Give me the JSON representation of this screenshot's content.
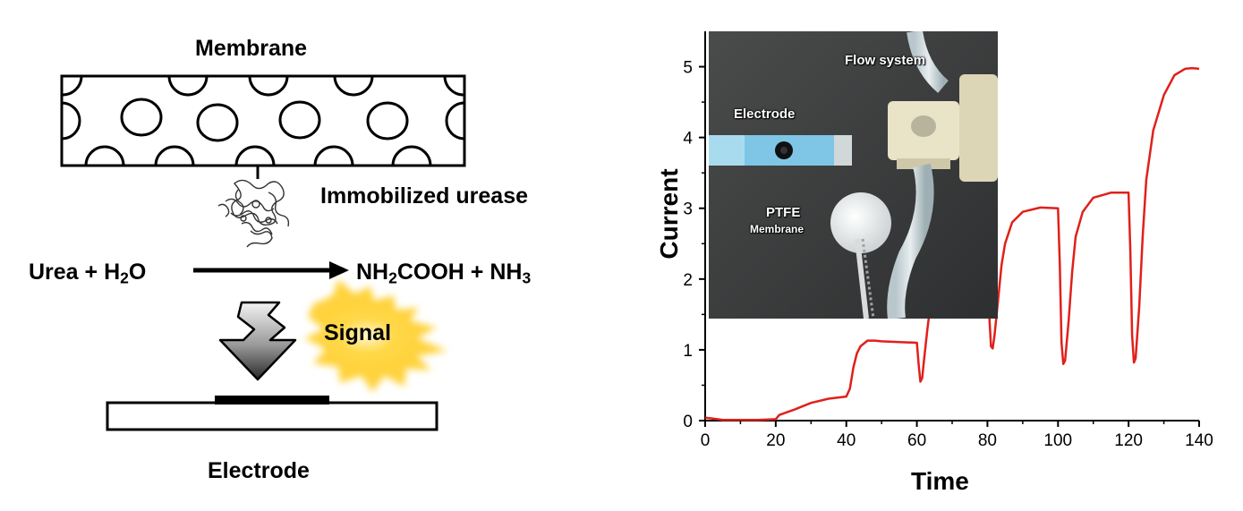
{
  "schematic": {
    "membrane_label": "Membrane",
    "enzyme_label": "Immobilized urease",
    "reaction": {
      "reactant_a": "Urea",
      "plus1": " + ",
      "reactant_b_base": "H",
      "reactant_b_sub": "2",
      "reactant_b_tail": "O",
      "product_a_base": "NH",
      "product_a_sub": "2",
      "product_a_tail": "COOH",
      "plus2": " + ",
      "product_b_base": "NH",
      "product_b_sub": "3"
    },
    "signal_label": "Signal",
    "electrode_label": "Electrode"
  },
  "photo": {
    "labels": {
      "flow_system": "Flow system",
      "electrode": "Electrode",
      "ptfe": "PTFE",
      "membrane": "Membrane"
    }
  },
  "chart_data": {
    "type": "line",
    "xlabel": "Time",
    "ylabel": "Current",
    "xlim": [
      0,
      140
    ],
    "ylim": [
      0,
      5.5
    ],
    "xticks": [
      0,
      20,
      40,
      60,
      80,
      100,
      120,
      140
    ],
    "yticks": [
      0,
      1,
      2,
      3,
      4,
      5
    ],
    "grid": false,
    "series": [
      {
        "color": "#e0201b",
        "x": [
          0,
          2,
          5,
          10,
          15,
          20,
          21,
          25,
          30,
          35,
          40,
          41,
          42,
          43,
          44,
          46,
          48,
          50,
          55,
          60,
          60.5,
          61,
          61.5,
          62,
          63,
          64,
          65,
          67,
          70,
          75,
          80,
          80.5,
          81,
          81.5,
          82,
          83,
          84,
          85,
          87,
          90,
          95,
          100,
          100.5,
          101,
          101.5,
          102,
          103,
          104,
          105,
          107,
          110,
          115,
          120,
          120.5,
          121,
          121.5,
          122,
          123,
          124,
          125,
          127,
          130,
          133,
          136,
          138,
          140
        ],
        "y": [
          0.04,
          0.03,
          0.01,
          0.01,
          0.01,
          0.02,
          0.08,
          0.15,
          0.25,
          0.31,
          0.34,
          0.45,
          0.75,
          0.95,
          1.05,
          1.13,
          1.13,
          1.12,
          1.11,
          1.1,
          0.8,
          0.55,
          0.6,
          0.85,
          1.3,
          1.7,
          1.9,
          2.05,
          2.1,
          2.1,
          2.1,
          1.5,
          1.05,
          1.02,
          1.2,
          1.7,
          2.2,
          2.5,
          2.8,
          2.95,
          3.01,
          3.0,
          2.2,
          1.1,
          0.8,
          0.85,
          1.4,
          2.1,
          2.6,
          2.95,
          3.15,
          3.22,
          3.22,
          2.4,
          1.2,
          0.82,
          0.88,
          1.6,
          2.6,
          3.4,
          4.1,
          4.6,
          4.88,
          4.97,
          4.98,
          4.97
        ]
      }
    ]
  }
}
